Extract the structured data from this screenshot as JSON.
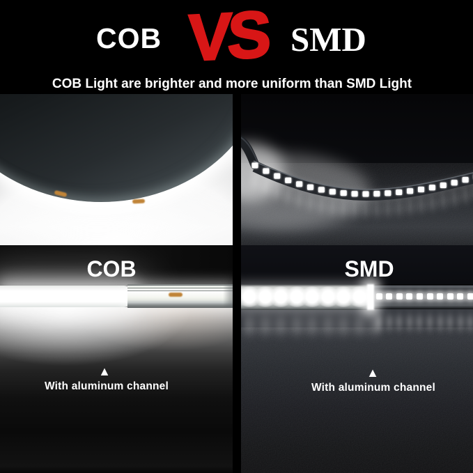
{
  "header": {
    "title": {
      "left": "COB",
      "vs": "VS",
      "right": "SMD"
    },
    "subtitle": "COB Light are brighter and more uniform than SMD Light"
  },
  "panels": {
    "left": {
      "label": "COB",
      "caption": "With aluminum channel",
      "marker": "▲"
    },
    "right": {
      "label": "SMD",
      "caption": "With aluminum channel",
      "marker": "▲"
    }
  },
  "visual": {
    "mid_smd_led_count": 21,
    "bottom_diffused_blob_count": 9,
    "bottom_clear_dot_count": 10,
    "colors": {
      "accent_red": "#d81616",
      "white": "#ffffff",
      "background": "#000000",
      "amber_phosphor": "#c08438"
    }
  }
}
